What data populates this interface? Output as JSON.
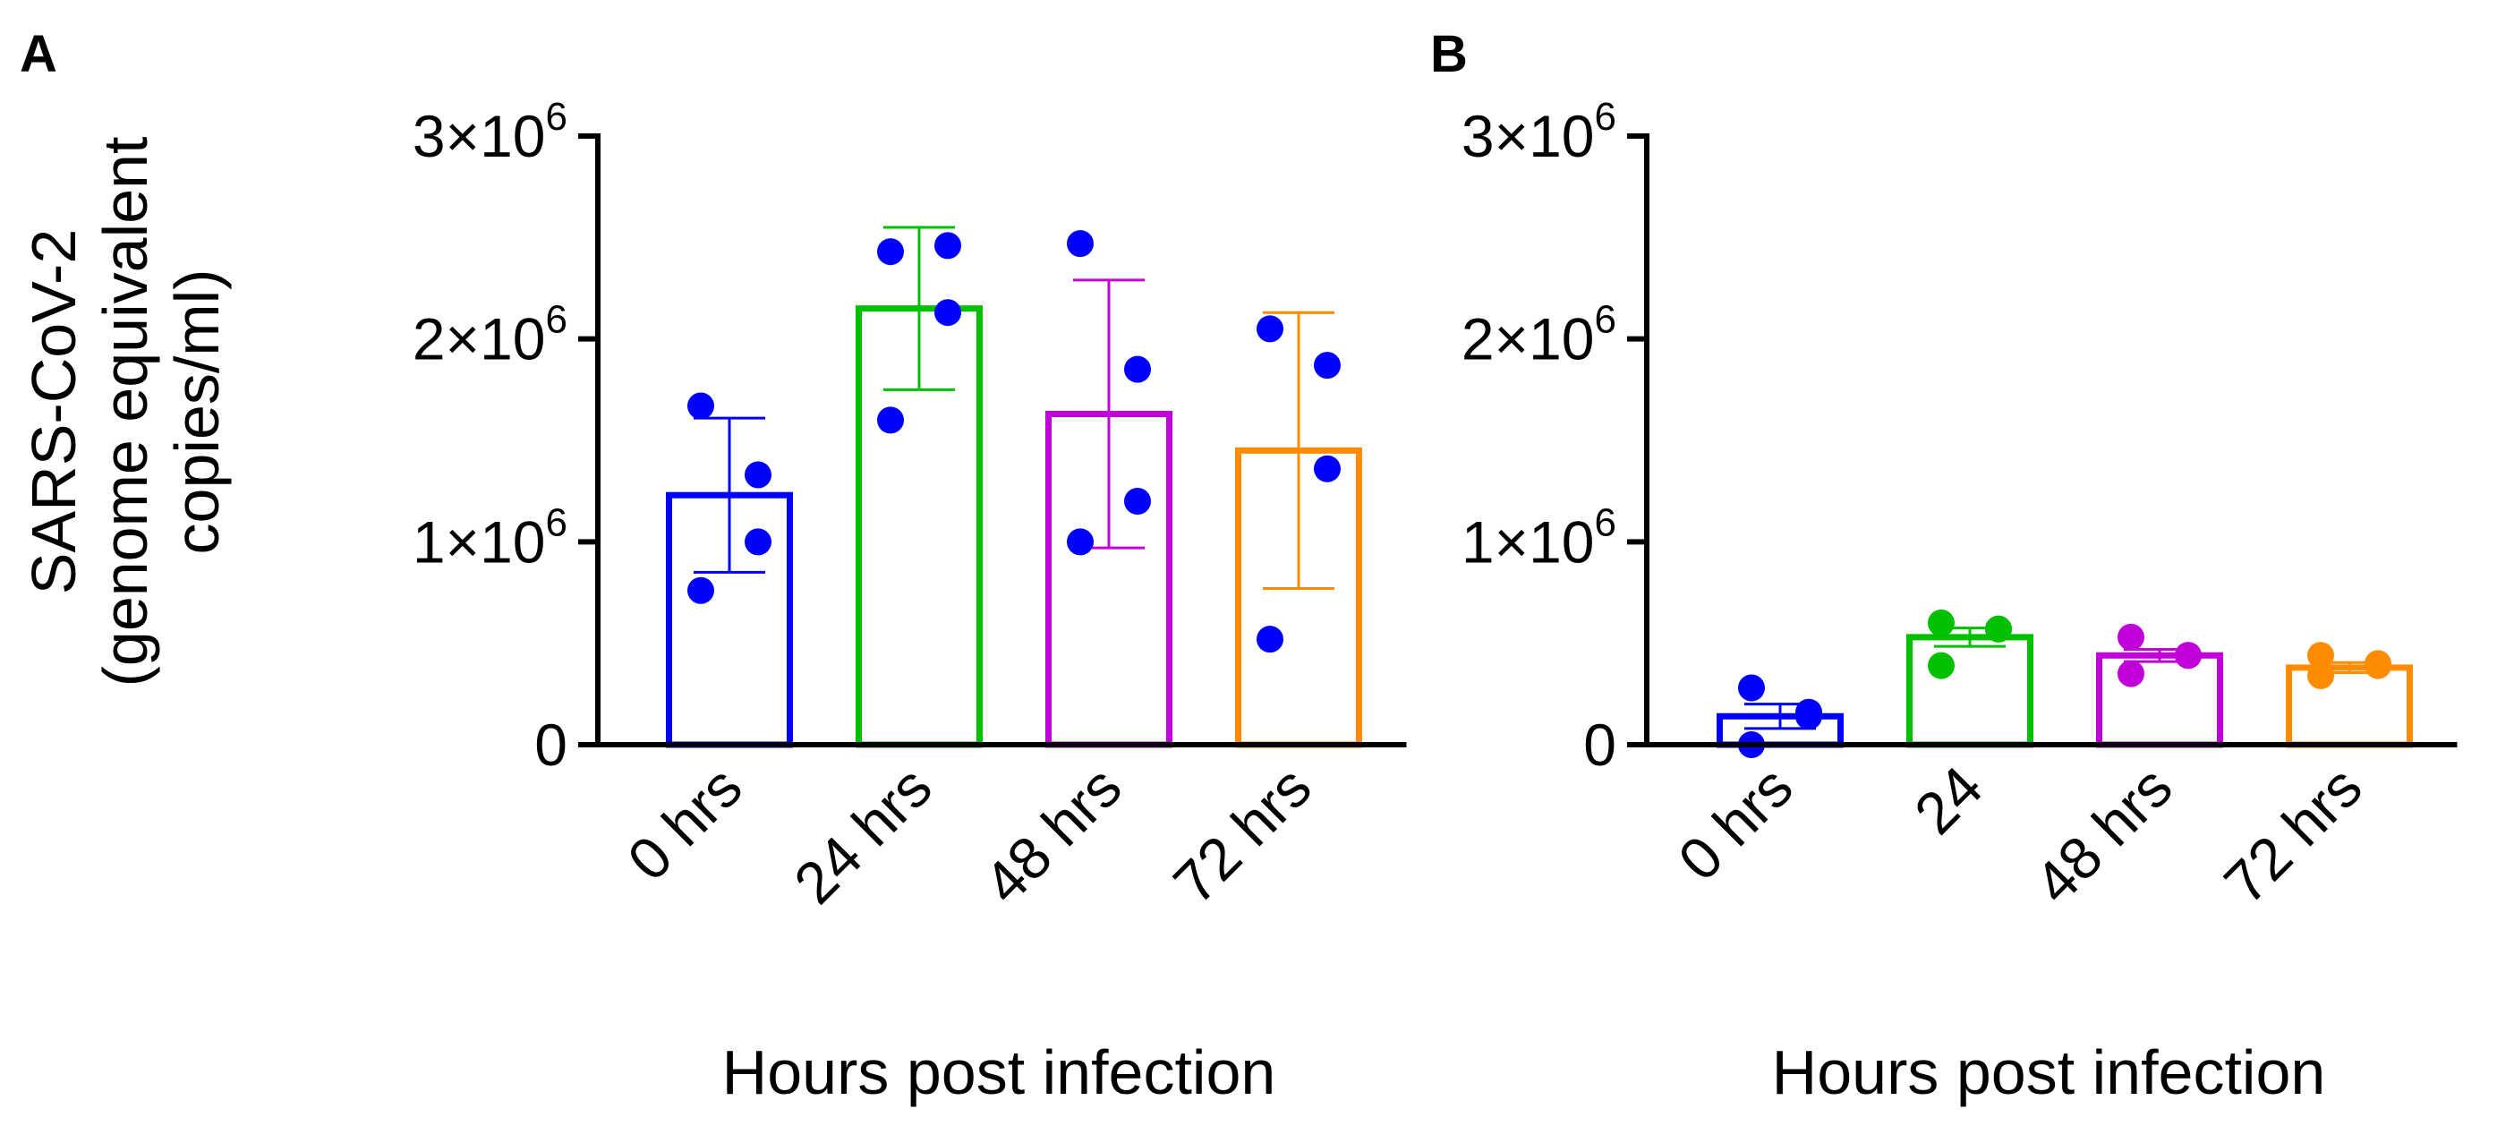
{
  "figure": {
    "y_axis_title": [
      "SARS-CoV-2",
      "(genome equivalent",
      "copies/ml)"
    ]
  },
  "chart_data": [
    {
      "panel": "A",
      "type": "bar",
      "categories": [
        "0 hrs",
        "24 hrs",
        "48 hrs",
        "72 hrs"
      ],
      "colors": [
        "#0000ff",
        "#00c000",
        "#c000d8",
        "#ff8c00"
      ],
      "point_color": "#0000ff",
      "means": [
        1230000,
        2150000,
        1630000,
        1450000
      ],
      "sd": [
        380000,
        400000,
        660000,
        680000
      ],
      "points": [
        [
          1670000,
          1330000,
          1000000,
          760000
        ],
        [
          2430000,
          2460000,
          2130000,
          1600000
        ],
        [
          2470000,
          1850000,
          1200000,
          1000000
        ],
        [
          2050000,
          1870000,
          1360000,
          520000
        ]
      ],
      "yticks": [
        0,
        1000000,
        2000000,
        3000000
      ],
      "ytick_labels": [
        {
          "base": "0",
          "exp": ""
        },
        {
          "base": "1×10",
          "exp": "6"
        },
        {
          "base": "2×10",
          "exp": "6"
        },
        {
          "base": "3×10",
          "exp": "6"
        }
      ],
      "ylim": [
        0,
        3000000
      ],
      "xlabel": "Hours post infection",
      "ylabel": "SARS-CoV-2 (genome equivalent copies/ml)"
    },
    {
      "panel": "B",
      "type": "bar",
      "categories": [
        "0 hrs",
        "24",
        "48 hrs",
        "72 hrs"
      ],
      "colors": [
        "#0000ff",
        "#00c000",
        "#c000d8",
        "#ff8c00"
      ],
      "point_color": "category",
      "means": [
        140000,
        530000,
        440000,
        380000
      ],
      "sd": [
        60000,
        45000,
        30000,
        25000
      ],
      "points": [
        [
          280000,
          160000,
          140000,
          0
        ],
        [
          600000,
          570000,
          570000,
          390000
        ],
        [
          530000,
          440000,
          440000,
          350000
        ],
        [
          440000,
          400000,
          390000,
          340000
        ]
      ],
      "yticks": [
        0,
        1000000,
        2000000,
        3000000
      ],
      "ytick_labels": [
        {
          "base": "0",
          "exp": ""
        },
        {
          "base": "1×10",
          "exp": "6"
        },
        {
          "base": "2×10",
          "exp": "6"
        },
        {
          "base": "3×10",
          "exp": "6"
        }
      ],
      "ylim": [
        0,
        3000000
      ],
      "xlabel": "Hours post infection",
      "ylabel": ""
    }
  ]
}
